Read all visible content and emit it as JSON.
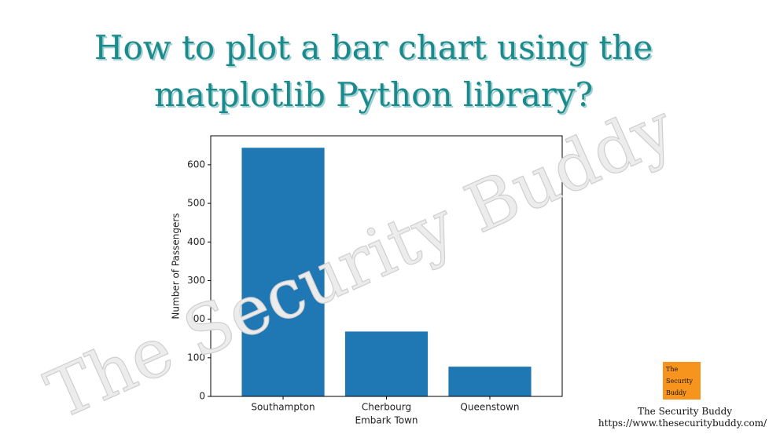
{
  "chart_data": {
    "type": "bar",
    "title": [
      "How to plot a bar chart using the",
      "matplotlib Python library?"
    ],
    "categories": [
      "Southampton",
      "Cherbourg",
      "Queenstown"
    ],
    "values": [
      644,
      168,
      77
    ],
    "color": "#1f77b4",
    "xlabel": "Embark Town",
    "ylabel": "Number of Passengers",
    "ylim": [
      0,
      675
    ],
    "yticks": [
      0,
      100,
      200,
      300,
      400,
      500,
      600
    ],
    "grid": false
  },
  "watermark": "The Security Buddy",
  "logo": [
    "The",
    "Security",
    "Buddy"
  ],
  "footer": {
    "name": "The Security Buddy",
    "url": "https://www.thesecuritybuddy.com/"
  }
}
